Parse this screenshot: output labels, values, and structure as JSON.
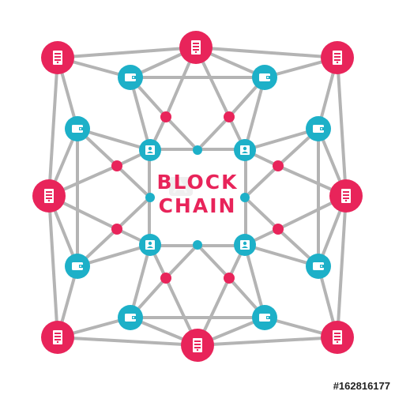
{
  "title": {
    "line1": "BLOCK",
    "line2": "CHAIN"
  },
  "stock_id": "#162816177",
  "watermark": "adobe-stock-watermark",
  "icons": {
    "server": "server-icon",
    "wallet": "wallet-icon",
    "user": "user-icon"
  },
  "colors": {
    "background": "#ffffff",
    "edge": "#b4b4b4",
    "red": "#e8245a",
    "blue": "#1db0c8",
    "title": "#e8245a",
    "box_border": "#b4b4b4",
    "icon_fill": "#ffffff"
  }
}
